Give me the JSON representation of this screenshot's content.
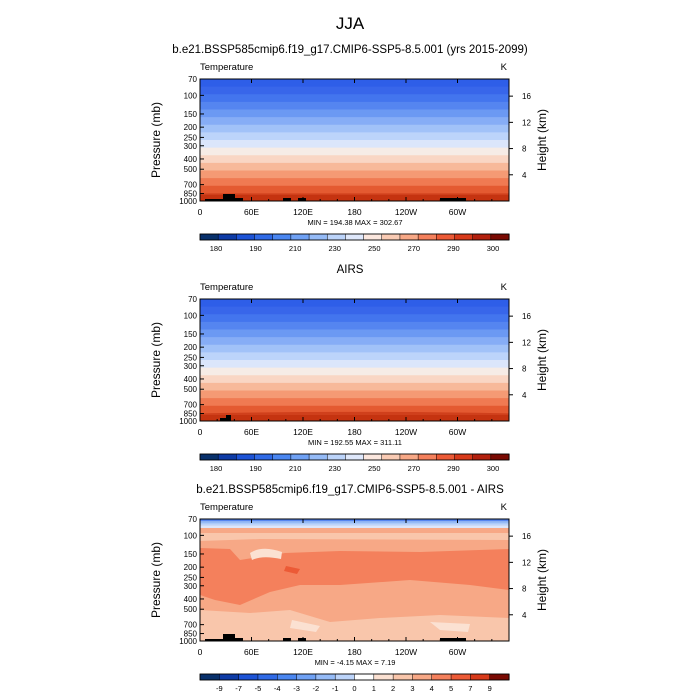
{
  "figure_title": "JJA",
  "chart_data": [
    {
      "type": "contour",
      "title": "b.e21.BSSP585cmip6.f19_g17.CMIP6-SSP5-8.5.001 (yrs 2015-2099)",
      "variable_label": "Temperature",
      "units": "K",
      "xlabel": "",
      "ylabel": "Pressure (mb)",
      "ylabel_right": "Height (km)",
      "x_ticks": [
        "0",
        "60E",
        "120E",
        "180",
        "120W",
        "60W"
      ],
      "y_ticks": [
        "70",
        "100",
        "150",
        "200",
        "250",
        "300",
        "400",
        "500",
        "700",
        "850",
        "1000"
      ],
      "height_ticks": [
        "16",
        "12",
        "8",
        "4"
      ],
      "stats_text": "MIN = 194.38  MAX = 302.67",
      "colorbar_labels": [
        "180",
        "190",
        "210",
        "230",
        "250",
        "270",
        "290",
        "300"
      ],
      "min": 194.38,
      "max": 302.67
    },
    {
      "type": "contour",
      "title": "AIRS",
      "variable_label": "Temperature",
      "units": "K",
      "xlabel": "",
      "ylabel": "Pressure (mb)",
      "ylabel_right": "Height (km)",
      "x_ticks": [
        "0",
        "60E",
        "120E",
        "180",
        "120W",
        "60W"
      ],
      "y_ticks": [
        "70",
        "100",
        "150",
        "200",
        "250",
        "300",
        "400",
        "500",
        "700",
        "850",
        "1000"
      ],
      "height_ticks": [
        "16",
        "12",
        "8",
        "4"
      ],
      "stats_text": "MIN = 192.55  MAX = 311.11",
      "colorbar_labels": [
        "180",
        "190",
        "210",
        "230",
        "250",
        "270",
        "290",
        "300"
      ],
      "min": 192.55,
      "max": 311.11
    },
    {
      "type": "contour",
      "title": "b.e21.BSSP585cmip6.f19_g17.CMIP6-SSP5-8.5.001 - AIRS",
      "variable_label": "Temperature",
      "units": "K",
      "xlabel": "",
      "ylabel": "Pressure (mb)",
      "ylabel_right": "Height (km)",
      "x_ticks": [
        "0",
        "60E",
        "120E",
        "180",
        "120W",
        "60W"
      ],
      "y_ticks": [
        "70",
        "100",
        "150",
        "200",
        "250",
        "300",
        "400",
        "500",
        "700",
        "850",
        "1000"
      ],
      "height_ticks": [
        "16",
        "12",
        "8",
        "4"
      ],
      "stats_text": "MIN = -4.15  MAX =  7.19",
      "colorbar_labels": [
        "-9",
        "-7",
        "-5",
        "-4",
        "-3",
        "-2",
        "-1",
        "0",
        "1",
        "2",
        "3",
        "4",
        "5",
        "7",
        "9"
      ],
      "min": -4.15,
      "max": 7.19
    }
  ],
  "colors": {
    "temp_colorbar": [
      "#08306b",
      "#0d3ba6",
      "#1c53d6",
      "#2f6ae6",
      "#4a86f0",
      "#6fa1f4",
      "#95bbf7",
      "#bcd4fa",
      "#dfe8fb",
      "#fbe7de",
      "#f9cbb4",
      "#f7a886",
      "#f4805c",
      "#ec5a36",
      "#d83a1a",
      "#b3200d",
      "#7a0a03"
    ],
    "temp_rows": [
      "#2e5ee8",
      "#3866ea",
      "#4375ee",
      "#5585f0",
      "#6b99f3",
      "#86adf6",
      "#a1c2f8",
      "#bcd4fa",
      "#dbe6fb",
      "#f6ece6",
      "#f9d6c4",
      "#f7b99a",
      "#f59a74",
      "#f07a52",
      "#e45a31",
      "#d0401c"
    ],
    "diff_colorbar": [
      "#08306b",
      "#0d3ba6",
      "#1c53d6",
      "#2f6ae6",
      "#4a86f0",
      "#6fa1f4",
      "#95bbf7",
      "#bcd4fa",
      "#ffffff",
      "#fbe1d2",
      "#f9c6ab",
      "#f7a886",
      "#f4805c",
      "#ec5a36",
      "#d83a1a",
      "#7a0a03"
    ],
    "diff_base": "#f7a886",
    "diff_warm": "#f4805c",
    "diff_light": "#f9c6ab",
    "diff_pale": "#fbe1d2",
    "diff_top_blue": [
      "#5585f0",
      "#95bbf7",
      "#bcd4fa",
      "#dbe6fb"
    ],
    "topography": "#000000"
  }
}
